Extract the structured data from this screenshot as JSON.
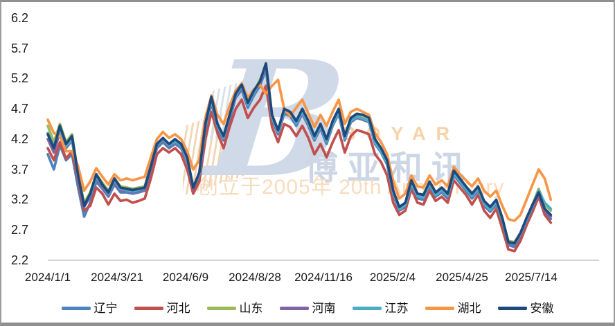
{
  "watermark": {
    "logo_letter": "B",
    "brand_en": "BOYAR",
    "brand_cn": "博亚和讯",
    "anniversary": "创立于2005年 20th Anniversary"
  },
  "chart_data": {
    "type": "line",
    "title": "",
    "xlabel": "",
    "ylabel": "",
    "ylim": [
      2.2,
      6.2
    ],
    "grid": false,
    "legend_position": "bottom",
    "axis_line_color": "#c6c6c6",
    "y_ticks": [
      "6.2",
      "5.7",
      "5.2",
      "4.7",
      "4.2",
      "3.7",
      "3.2",
      "2.7",
      "2.2"
    ],
    "x_tick_labels": [
      "2024/1/1",
      "2024/3/21",
      "2024/6/9",
      "2024/8/28",
      "2024/11/16",
      "2025/2/4",
      "2025/4/25",
      "2025/7/14"
    ],
    "x_unit": "weekly samples from 2024/1/1 to 2025/8/4",
    "series": [
      {
        "id": "liaoning",
        "name": "辽宁",
        "color": "#4F81BD",
        "values": [
          3.95,
          3.7,
          4.1,
          3.85,
          3.95,
          3.4,
          2.92,
          3.15,
          3.5,
          3.38,
          3.25,
          3.45,
          3.32,
          3.32,
          3.3,
          3.32,
          3.35,
          3.68,
          4.05,
          4.15,
          4.05,
          4.12,
          4.05,
          3.82,
          3.35,
          3.58,
          4.35,
          4.8,
          4.38,
          4.18,
          4.52,
          4.88,
          5.02,
          4.72,
          4.92,
          5.08,
          5.35,
          4.52,
          4.28,
          4.62,
          4.58,
          4.42,
          4.62,
          4.42,
          4.18,
          4.38,
          4.12,
          4.42,
          4.62,
          4.18,
          4.48,
          4.55,
          4.52,
          4.48,
          4.12,
          3.98,
          3.78,
          3.28,
          3.02,
          3.08,
          3.45,
          3.22,
          3.2,
          3.42,
          3.25,
          3.32,
          3.22,
          3.6,
          3.48,
          3.35,
          3.22,
          3.35,
          3.1,
          3.0,
          3.12,
          2.82,
          2.45,
          2.42,
          2.58,
          2.82,
          3.05,
          3.25,
          3.0,
          2.88
        ]
      },
      {
        "id": "hebei",
        "name": "河北",
        "color": "#C0504D",
        "values": [
          4.05,
          3.85,
          4.15,
          3.88,
          4.0,
          3.5,
          3.02,
          3.1,
          3.4,
          3.3,
          3.12,
          3.3,
          3.18,
          3.2,
          3.15,
          3.18,
          3.22,
          3.55,
          3.95,
          4.05,
          3.98,
          4.05,
          3.95,
          3.7,
          3.3,
          3.5,
          4.2,
          4.65,
          4.3,
          4.05,
          4.4,
          4.7,
          4.85,
          4.55,
          4.72,
          4.85,
          5.08,
          4.4,
          4.15,
          4.45,
          4.4,
          4.25,
          4.42,
          4.22,
          3.95,
          4.12,
          3.9,
          4.15,
          4.35,
          3.98,
          4.25,
          4.35,
          4.32,
          4.28,
          3.95,
          3.82,
          3.6,
          3.15,
          2.95,
          3.02,
          3.38,
          3.15,
          3.12,
          3.35,
          3.18,
          3.25,
          3.15,
          3.52,
          3.4,
          3.28,
          3.12,
          3.28,
          3.02,
          2.9,
          3.05,
          2.72,
          2.38,
          2.35,
          2.52,
          2.78,
          3.0,
          3.25,
          2.95,
          2.82
        ]
      },
      {
        "id": "shandong",
        "name": "山东",
        "color": "#9BBB59",
        "values": [
          4.42,
          4.15,
          4.45,
          4.15,
          4.28,
          3.62,
          3.15,
          3.32,
          3.62,
          3.48,
          3.35,
          3.55,
          3.42,
          3.4,
          3.38,
          3.4,
          3.42,
          3.78,
          4.1,
          4.2,
          4.1,
          4.18,
          4.1,
          3.88,
          3.42,
          3.62,
          4.42,
          4.88,
          4.42,
          4.22,
          4.58,
          4.92,
          5.08,
          4.78,
          4.98,
          5.18,
          5.4,
          4.58,
          4.32,
          4.68,
          4.62,
          4.48,
          4.65,
          4.45,
          4.22,
          4.42,
          4.18,
          4.48,
          4.65,
          4.22,
          4.5,
          4.58,
          4.55,
          4.5,
          4.15,
          4.02,
          3.82,
          3.32,
          3.05,
          3.12,
          3.48,
          3.28,
          3.25,
          3.48,
          3.3,
          3.38,
          3.28,
          3.65,
          3.52,
          3.4,
          3.28,
          3.4,
          3.15,
          3.05,
          3.18,
          2.88,
          2.52,
          2.5,
          2.65,
          2.88,
          3.12,
          3.38,
          3.12,
          3.02
        ]
      },
      {
        "id": "henan",
        "name": "河南",
        "color": "#8064A2",
        "values": [
          4.2,
          3.98,
          4.32,
          4.05,
          4.18,
          3.55,
          3.08,
          3.25,
          3.55,
          3.42,
          3.28,
          3.48,
          3.35,
          3.35,
          3.32,
          3.35,
          3.38,
          3.72,
          4.08,
          4.18,
          4.08,
          4.15,
          4.08,
          3.85,
          3.38,
          3.6,
          4.38,
          4.82,
          4.4,
          4.2,
          4.55,
          4.9,
          5.05,
          4.75,
          4.95,
          5.12,
          5.38,
          4.55,
          4.3,
          4.65,
          4.6,
          4.45,
          4.62,
          4.42,
          4.18,
          4.4,
          4.15,
          4.45,
          4.62,
          4.2,
          4.48,
          4.55,
          4.52,
          4.48,
          4.12,
          4.0,
          3.8,
          3.3,
          3.02,
          3.1,
          3.45,
          3.25,
          3.22,
          3.45,
          3.28,
          3.35,
          3.25,
          3.62,
          3.5,
          3.38,
          3.25,
          3.38,
          3.12,
          3.02,
          3.15,
          2.85,
          2.48,
          2.45,
          2.62,
          2.85,
          3.08,
          3.3,
          3.02,
          2.92
        ]
      },
      {
        "id": "jiangsu",
        "name": "江苏",
        "color": "#4BACC6",
        "values": [
          4.3,
          4.08,
          4.35,
          4.08,
          4.2,
          3.58,
          3.12,
          3.28,
          3.58,
          3.45,
          3.3,
          3.52,
          3.38,
          3.36,
          3.34,
          3.36,
          3.4,
          3.75,
          4.1,
          4.2,
          4.1,
          4.16,
          4.1,
          3.86,
          3.4,
          3.62,
          4.4,
          4.85,
          4.42,
          4.22,
          4.58,
          4.92,
          5.08,
          4.76,
          4.96,
          5.15,
          5.42,
          4.56,
          4.32,
          4.66,
          4.62,
          4.46,
          4.65,
          4.45,
          4.2,
          4.42,
          4.16,
          4.46,
          4.64,
          4.21,
          4.5,
          4.57,
          4.54,
          4.49,
          4.14,
          4.0,
          3.81,
          3.31,
          3.04,
          3.11,
          3.47,
          3.26,
          3.23,
          3.46,
          3.28,
          3.36,
          3.26,
          3.63,
          3.51,
          3.38,
          3.26,
          3.38,
          3.13,
          3.03,
          3.16,
          2.86,
          2.5,
          2.47,
          2.63,
          2.87,
          3.1,
          3.35,
          3.15,
          3.05
        ]
      },
      {
        "id": "hubei",
        "name": "湖北",
        "color": "#F79646",
        "values": [
          4.52,
          4.3,
          4.25,
          4.0,
          4.0,
          3.75,
          3.35,
          3.5,
          3.72,
          3.58,
          3.45,
          3.62,
          3.52,
          3.55,
          3.52,
          3.55,
          3.58,
          3.9,
          4.2,
          4.32,
          4.22,
          4.28,
          4.2,
          4.0,
          3.7,
          3.85,
          4.55,
          4.92,
          4.6,
          4.45,
          4.75,
          5.0,
          5.12,
          4.88,
          5.02,
          5.1,
          4.95,
          5.08,
          5.18,
          4.7,
          4.58,
          4.72,
          4.85,
          4.62,
          4.4,
          4.6,
          4.42,
          4.65,
          4.85,
          4.45,
          4.65,
          4.7,
          4.65,
          4.6,
          4.3,
          4.15,
          3.95,
          3.5,
          3.22,
          3.3,
          3.6,
          3.42,
          3.4,
          3.6,
          3.45,
          3.52,
          3.42,
          3.74,
          3.62,
          3.52,
          3.42,
          3.55,
          3.35,
          3.25,
          3.35,
          3.1,
          2.88,
          2.85,
          2.95,
          3.2,
          3.45,
          3.7,
          3.55,
          3.2
        ]
      },
      {
        "id": "anhui",
        "name": "安徽",
        "color": "#1F497D",
        "values": [
          4.28,
          4.05,
          4.42,
          4.12,
          4.25,
          3.6,
          3.1,
          3.3,
          3.62,
          3.45,
          3.32,
          3.55,
          3.4,
          3.38,
          3.36,
          3.38,
          3.4,
          3.75,
          4.12,
          4.22,
          4.12,
          4.2,
          4.12,
          3.9,
          3.4,
          3.65,
          4.45,
          4.9,
          4.45,
          4.25,
          4.6,
          4.95,
          5.1,
          4.8,
          5.0,
          5.15,
          5.45,
          4.6,
          4.35,
          4.7,
          4.65,
          4.5,
          4.7,
          4.5,
          4.25,
          4.45,
          4.2,
          4.5,
          4.7,
          4.25,
          4.55,
          4.62,
          4.6,
          4.55,
          4.2,
          4.05,
          3.85,
          3.35,
          3.08,
          3.15,
          3.52,
          3.3,
          3.28,
          3.5,
          3.32,
          3.4,
          3.3,
          3.68,
          3.55,
          3.42,
          3.3,
          3.42,
          3.18,
          3.08,
          3.2,
          2.9,
          2.5,
          2.48,
          2.65,
          2.9,
          3.12,
          3.32,
          3.05,
          2.95
        ]
      }
    ]
  }
}
